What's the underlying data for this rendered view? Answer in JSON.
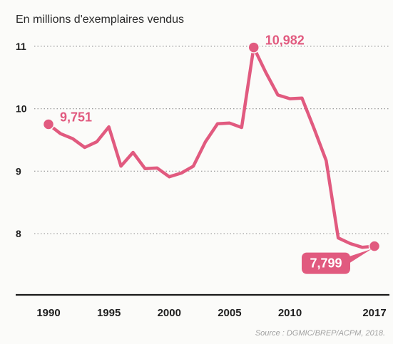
{
  "accent_color": "#e15a7f",
  "label_fill_color": "#e15a7f",
  "source": "Source : DGMIC/BREP/ACPM, 2018.",
  "chart_data": {
    "type": "line",
    "title": "",
    "subtitle": "En millions d'exemplaires vendus",
    "xlabel": "",
    "ylabel": "",
    "x_range": [
      1990,
      2017
    ],
    "ylim": [
      7.2,
      11.1
    ],
    "yticks": [
      8,
      9,
      10,
      11
    ],
    "x_tick_labels": [
      "1990",
      "1995",
      "2000",
      "2005",
      "2010",
      "2017"
    ],
    "grid": true,
    "legend": "none",
    "series": [
      {
        "x": [
          1990,
          1991,
          1992,
          1993,
          1994,
          1995,
          1996,
          1997,
          1998,
          1999,
          2000,
          2001,
          2002,
          2003,
          2004,
          2005,
          2006,
          2007,
          2008,
          2009,
          2010,
          2011,
          2012,
          2013,
          2014,
          2015,
          2016,
          2017
        ],
        "values": [
          9.751,
          9.6,
          9.52,
          9.38,
          9.47,
          9.71,
          9.08,
          9.3,
          9.04,
          9.05,
          8.91,
          8.97,
          9.08,
          9.47,
          9.76,
          9.77,
          9.7,
          10.982,
          10.58,
          10.22,
          10.16,
          10.17,
          9.68,
          9.17,
          7.93,
          7.84,
          7.78,
          7.799
        ]
      }
    ],
    "annotations": [
      {
        "x": 1990,
        "y": 9.751,
        "label": "9,751",
        "style": "text"
      },
      {
        "x": 2007,
        "y": 10.982,
        "label": "10,982",
        "style": "text"
      },
      {
        "x": 2017,
        "y": 7.799,
        "label": "7,799",
        "style": "box"
      }
    ]
  }
}
